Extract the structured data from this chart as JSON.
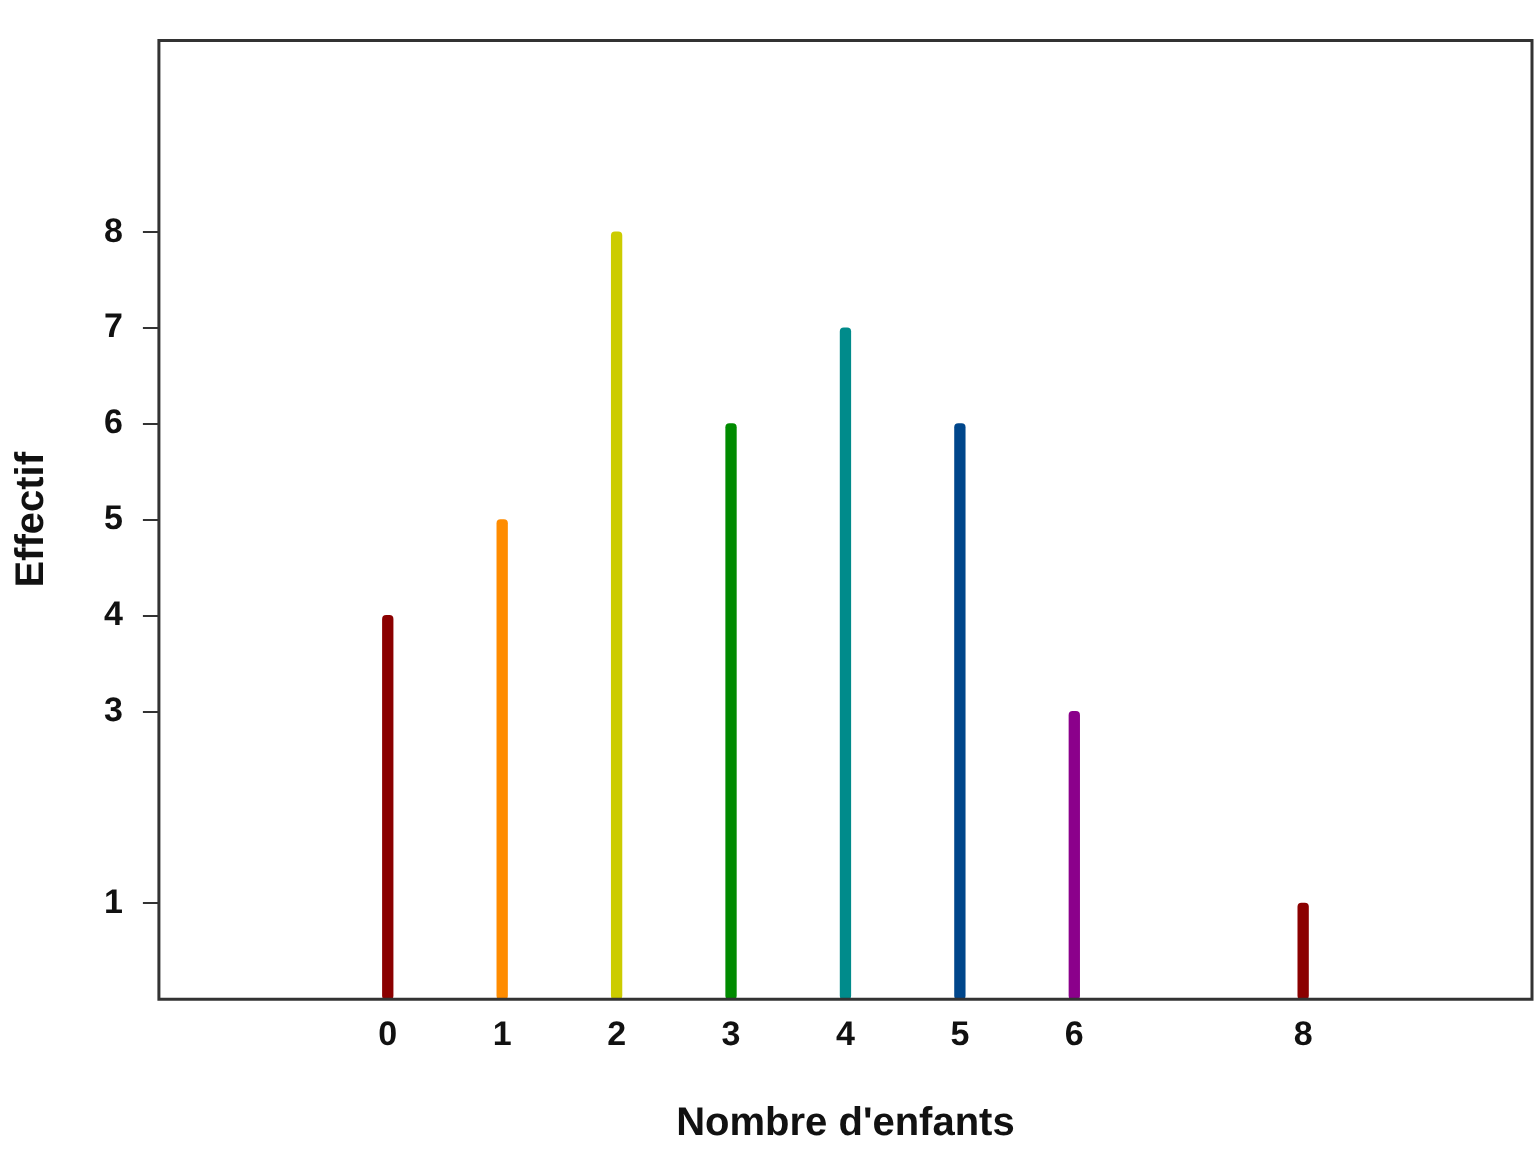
{
  "chart_data": {
    "type": "bar",
    "xlabel": "Nombre d'enfants",
    "ylabel": "Effectif",
    "x": [
      0,
      1,
      2,
      3,
      4,
      5,
      6,
      8
    ],
    "values": [
      4,
      5,
      8,
      6,
      7,
      6,
      3,
      1
    ],
    "colors": [
      "#8b0000",
      "#ff8c00",
      "#cccc00",
      "#008b00",
      "#008b8b",
      "#00468b",
      "#8b008b",
      "#8b0000"
    ],
    "xlim": [
      -2,
      10
    ],
    "xticks": [
      0,
      1,
      2,
      3,
      4,
      5,
      6,
      8
    ],
    "ylim": [
      0,
      10
    ],
    "yticks": [
      1,
      3,
      4,
      5,
      6,
      7,
      8
    ],
    "grid": false,
    "legend": false
  }
}
